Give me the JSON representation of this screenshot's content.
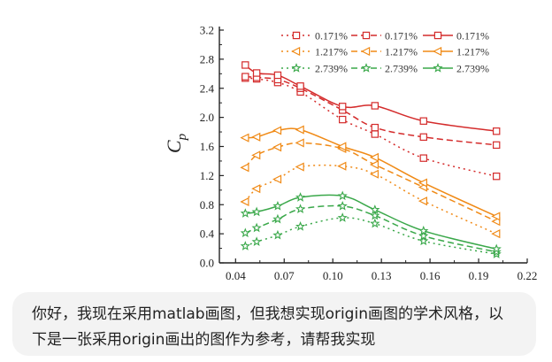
{
  "chat": {
    "message": "你好，我现在采用matlab画图，但我想实现origin画图的学术风格，以下是一张采用origin画出的图作为参考，请帮我实现"
  },
  "chart_data": {
    "type": "line",
    "ylabel": "Cp",
    "ylabel_main": "C",
    "ylabel_sub": "p",
    "xlim": [
      0.03,
      0.22
    ],
    "ylim": [
      0.0,
      3.2
    ],
    "xticks": [
      0.04,
      0.07,
      0.1,
      0.13,
      0.16,
      0.19,
      0.22
    ],
    "xtick_labels": [
      "0.04",
      "0.07",
      "0.10",
      "0.13",
      "0.16",
      "0.19",
      "0.22"
    ],
    "yticks": [
      0.0,
      0.4,
      0.8,
      1.2,
      1.6,
      2.0,
      2.4,
      2.8,
      3.2
    ],
    "ytick_labels": [
      "0.0",
      "0.4",
      "0.8",
      "1.2",
      "1.6",
      "2.0",
      "2.4",
      "2.8",
      "3.2"
    ],
    "grid": false,
    "legend_position": "top",
    "x": [
      0.046,
      0.053,
      0.066,
      0.08,
      0.106,
      0.126,
      0.156,
      0.201
    ],
    "series": [
      {
        "name": "0.171%",
        "group": "red",
        "style": "dotted",
        "marker": "square",
        "color": "#d42b2b",
        "values": [
          2.54,
          2.53,
          2.48,
          2.35,
          1.97,
          1.77,
          1.44,
          1.19
        ]
      },
      {
        "name": "0.171%",
        "group": "red",
        "style": "dashed",
        "marker": "square",
        "color": "#d42b2b",
        "values": [
          2.56,
          2.55,
          2.52,
          2.4,
          2.1,
          1.86,
          1.73,
          1.62
        ]
      },
      {
        "name": "0.171%",
        "group": "red",
        "style": "solid",
        "marker": "square",
        "color": "#d42b2b",
        "values": [
          2.72,
          2.61,
          2.58,
          2.43,
          2.15,
          2.16,
          1.95,
          1.81
        ]
      },
      {
        "name": "1.217%",
        "group": "orange",
        "style": "dotted",
        "marker": "triangle-left",
        "color": "#f08a16",
        "values": [
          0.84,
          1.02,
          1.15,
          1.32,
          1.33,
          1.22,
          0.85,
          0.4
        ]
      },
      {
        "name": "1.217%",
        "group": "orange",
        "style": "dashed",
        "marker": "triangle-left",
        "color": "#f08a16",
        "values": [
          1.31,
          1.48,
          1.59,
          1.65,
          1.57,
          1.35,
          1.04,
          0.57
        ]
      },
      {
        "name": "1.217%",
        "group": "orange",
        "style": "solid",
        "marker": "triangle-left",
        "color": "#f08a16",
        "values": [
          1.72,
          1.73,
          1.82,
          1.83,
          1.6,
          1.45,
          1.1,
          0.64
        ]
      },
      {
        "name": "2.739%",
        "group": "green",
        "style": "dotted",
        "marker": "star",
        "color": "#3aa84a",
        "values": [
          0.23,
          0.29,
          0.38,
          0.5,
          0.62,
          0.54,
          0.3,
          0.12
        ]
      },
      {
        "name": "2.739%",
        "group": "green",
        "style": "dashed",
        "marker": "star",
        "color": "#3aa84a",
        "values": [
          0.41,
          0.48,
          0.6,
          0.74,
          0.78,
          0.65,
          0.37,
          0.15
        ]
      },
      {
        "name": "2.739%",
        "group": "green",
        "style": "solid",
        "marker": "star",
        "color": "#3aa84a",
        "values": [
          0.68,
          0.7,
          0.78,
          0.9,
          0.92,
          0.73,
          0.44,
          0.19
        ]
      }
    ]
  }
}
